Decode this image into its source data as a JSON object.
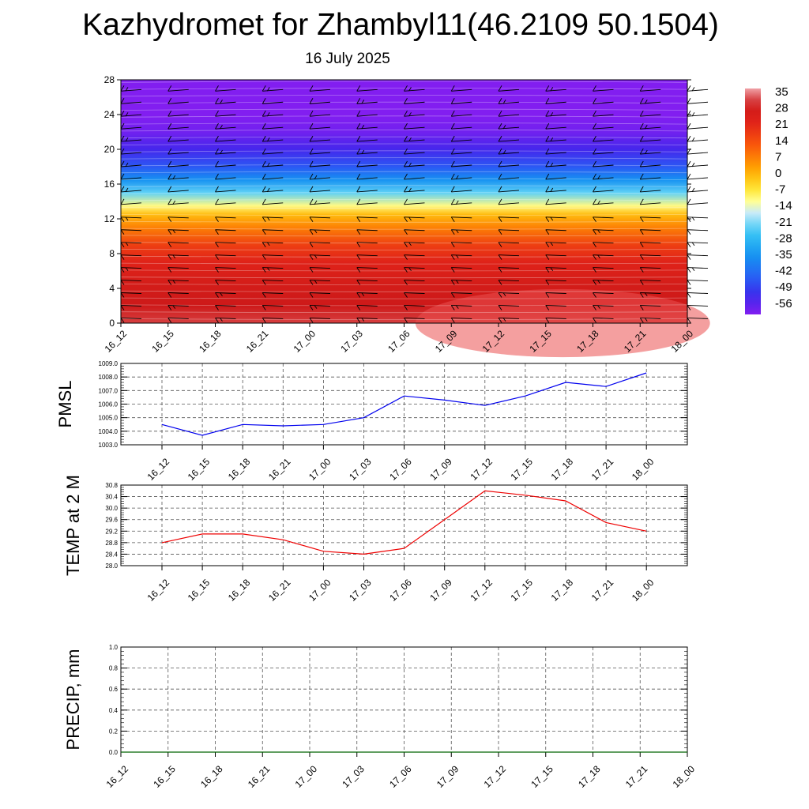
{
  "title": "Kazhydromet for Zhambyl11(46.2109 50.1504)",
  "subtitle": "16 July 2025",
  "time_labels": [
    "16_12",
    "16_15",
    "16_18",
    "16_21",
    "17_00",
    "17_03",
    "17_06",
    "17_09",
    "17_12",
    "17_15",
    "17_18",
    "17_21",
    "18_00"
  ],
  "chart_data": [
    {
      "type": "heatmap",
      "name": "cross-section",
      "x": [
        "16_12",
        "16_15",
        "16_18",
        "16_21",
        "17_00",
        "17_03",
        "17_06",
        "17_09",
        "17_12",
        "17_15",
        "17_18",
        "17_21",
        "18_00"
      ],
      "y_ticks": [
        0,
        4,
        8,
        12,
        16,
        20,
        24,
        28
      ],
      "ylim": [
        0,
        28
      ],
      "colorbar_labels": [
        "35",
        "28",
        "21",
        "14",
        "7",
        "0",
        "-7",
        "-14",
        "-21",
        "-28",
        "-35",
        "-42",
        "-49",
        "-56"
      ],
      "colorbar_range": [
        -60,
        38
      ],
      "profile": [
        {
          "y": 0,
          "v": 33
        },
        {
          "y": 2,
          "v": 31
        },
        {
          "y": 4,
          "v": 29
        },
        {
          "y": 7,
          "v": 24
        },
        {
          "y": 9,
          "v": 18
        },
        {
          "y": 11,
          "v": 8
        },
        {
          "y": 12.5,
          "v": 0
        },
        {
          "y": 13.5,
          "v": -10
        },
        {
          "y": 15,
          "v": -22
        },
        {
          "y": 16.5,
          "v": -35
        },
        {
          "y": 18,
          "v": -45
        },
        {
          "y": 20,
          "v": -53
        },
        {
          "y": 22,
          "v": -58
        },
        {
          "y": 24,
          "v": -60
        },
        {
          "y": 28,
          "v": -60
        }
      ],
      "colors": {
        "hot": "#d01d1d",
        "cold": "#8a25f0",
        "barb": "#000000"
      }
    },
    {
      "type": "line",
      "name": "PMSL",
      "ylabel": "PMSL",
      "categories": [
        "16_12",
        "16_15",
        "16_18",
        "16_21",
        "17_00",
        "17_03",
        "17_06",
        "17_09",
        "17_12",
        "17_15",
        "17_18",
        "17_21",
        "18_00"
      ],
      "values": [
        1004.5,
        1003.7,
        1004.5,
        1004.4,
        1004.5,
        1005.0,
        1006.6,
        1006.3,
        1005.9,
        1006.6,
        1007.6,
        1007.3,
        1008.3
      ],
      "ylim": [
        1003.0,
        1009.0
      ],
      "yticks": [
        "1003.0",
        "1004.0",
        "1005.0",
        "1006.0",
        "1007.0",
        "1008.0",
        "1009.0"
      ],
      "color": "#0000ee",
      "grid": true
    },
    {
      "type": "line",
      "name": "TEMP at 2 M",
      "ylabel": "TEMP at 2 M",
      "categories": [
        "16_12",
        "16_15",
        "16_18",
        "16_21",
        "17_00",
        "17_03",
        "17_06",
        "17_09",
        "17_12",
        "17_15",
        "17_18",
        "17_21",
        "18_00"
      ],
      "values": [
        28.8,
        29.1,
        29.1,
        28.9,
        28.5,
        28.4,
        28.6,
        29.6,
        30.6,
        30.45,
        30.25,
        29.5,
        29.2
      ],
      "ylim": [
        28.0,
        30.8
      ],
      "yticks": [
        "28.0",
        "28.4",
        "28.8",
        "29.2",
        "29.6",
        "30.0",
        "30.4",
        "30.8"
      ],
      "color": "#ee0000",
      "grid": true
    },
    {
      "type": "line",
      "name": "PRECIP, mm",
      "ylabel": "PRECIP, mm",
      "categories": [
        "16_12",
        "16_15",
        "16_18",
        "16_21",
        "17_00",
        "17_03",
        "17_06",
        "17_09",
        "17_12",
        "17_15",
        "17_18",
        "17_21",
        "18_00"
      ],
      "values": [
        0,
        0,
        0,
        0,
        0,
        0,
        0,
        0,
        0,
        0,
        0,
        0,
        0
      ],
      "ylim": [
        0.0,
        1.0
      ],
      "yticks": [
        "0.0",
        "0.2",
        "0.4",
        "0.6",
        "0.8",
        "1.0"
      ],
      "color": "#006400",
      "grid": true
    }
  ]
}
